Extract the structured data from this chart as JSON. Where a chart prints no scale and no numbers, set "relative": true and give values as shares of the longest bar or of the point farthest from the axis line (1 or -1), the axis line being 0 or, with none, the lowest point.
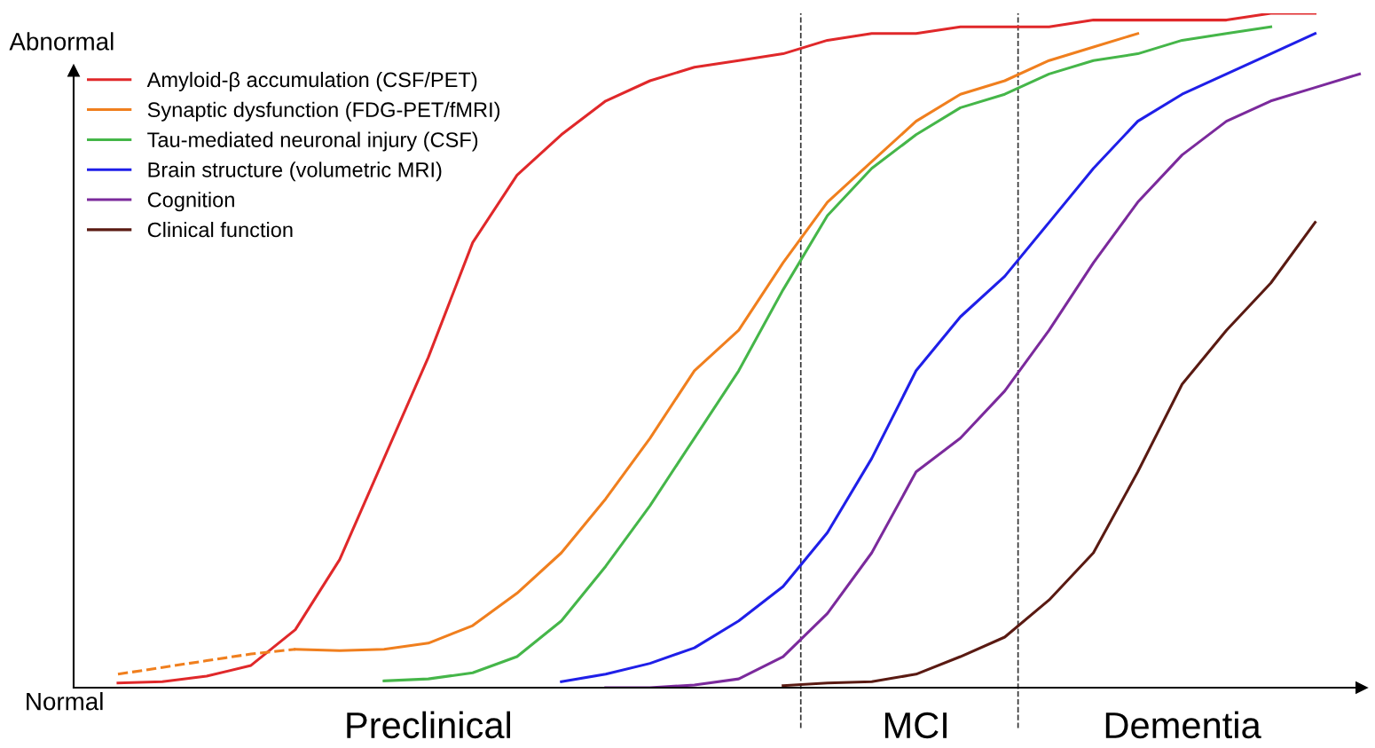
{
  "chart_data": {
    "type": "line",
    "relative": true,
    "legend": "top left",
    "grid": false,
    "marker": "none",
    "line_style": "solid",
    "categories": [
      null,
      null,
      null,
      null,
      null,
      null,
      null,
      null,
      null,
      null,
      null,
      null,
      null,
      null,
      null,
      null,
      null,
      null,
      null,
      null,
      null,
      null,
      null,
      null,
      null,
      null,
      null,
      null,
      null,
      null
    ],
    "series": [
      {
        "name": "Amyloid-β accumulation (CSF/PET)",
        "color": "#e0282a",
        "values": [
          null,
          0.007,
          0.009,
          0.017,
          0.033,
          0.086,
          0.19,
          0.34,
          0.49,
          0.66,
          0.76,
          0.82,
          0.87,
          0.9,
          0.92,
          0.93,
          0.94,
          0.96,
          0.97,
          0.97,
          0.98,
          0.98,
          0.98,
          0.99,
          0.99,
          0.99,
          0.99,
          1.0,
          1.0,
          null
        ]
      },
      {
        "name": "Synaptic dysfunction (FDG-PET/fMRI)",
        "color": "#f07f1e",
        "values": [
          null,
          null,
          null,
          null,
          null,
          0.057,
          0.055,
          0.057,
          0.066,
          0.092,
          0.14,
          0.2,
          0.28,
          0.37,
          0.47,
          0.53,
          0.63,
          0.72,
          0.78,
          0.84,
          0.88,
          0.9,
          0.93,
          0.95,
          0.97,
          null,
          null,
          null,
          null,
          null
        ]
      },
      {
        "color": "#f07f1e",
        "line_style": "dashed",
        "values": [
          null,
          0.02,
          0.03,
          0.04,
          0.05,
          0.057,
          null,
          null,
          null,
          null,
          null,
          null,
          null,
          null,
          null,
          null,
          null,
          null,
          null,
          null,
          null,
          null,
          null,
          null,
          null,
          null,
          null,
          null,
          null,
          null
        ]
      },
      {
        "name": "Tau-mediated neuronal injury (CSF)",
        "color": "#45b649",
        "values": [
          null,
          null,
          null,
          null,
          null,
          null,
          null,
          0.01,
          0.013,
          0.022,
          0.046,
          0.099,
          0.18,
          0.27,
          0.37,
          0.47,
          0.59,
          0.7,
          0.77,
          0.82,
          0.86,
          0.88,
          0.91,
          0.93,
          0.94,
          0.96,
          0.97,
          0.98,
          null,
          null
        ]
      },
      {
        "name": "Brain structure (volumetric MRI)",
        "color": "#1f1fe8",
        "values": [
          null,
          null,
          null,
          null,
          null,
          null,
          null,
          null,
          null,
          null,
          null,
          0.009,
          0.02,
          0.036,
          0.059,
          0.099,
          0.15,
          0.23,
          0.34,
          0.47,
          0.55,
          0.61,
          0.69,
          0.77,
          0.84,
          0.88,
          0.91,
          0.94,
          0.97,
          null
        ]
      },
      {
        "name": "Cognition",
        "color": "#7b2a9c",
        "values": [
          null,
          null,
          null,
          null,
          null,
          null,
          null,
          null,
          null,
          null,
          null,
          null,
          0.0,
          0.0,
          0.004,
          0.013,
          0.046,
          0.11,
          0.2,
          0.32,
          0.37,
          0.44,
          0.53,
          0.63,
          0.72,
          0.79,
          0.84,
          0.87,
          0.89,
          0.91
        ]
      },
      {
        "name": "Clinical function",
        "color": "#5a1a12",
        "values": [
          null,
          null,
          null,
          null,
          null,
          null,
          null,
          null,
          null,
          null,
          null,
          null,
          null,
          null,
          null,
          null,
          0.003,
          0.007,
          0.009,
          0.02,
          0.046,
          0.075,
          0.13,
          0.2,
          0.32,
          0.45,
          0.53,
          0.6,
          0.69,
          null
        ]
      }
    ],
    "annotations": [
      "Abnormal",
      "Normal",
      "Preclinical",
      "MCI",
      "Dementia"
    ]
  }
}
